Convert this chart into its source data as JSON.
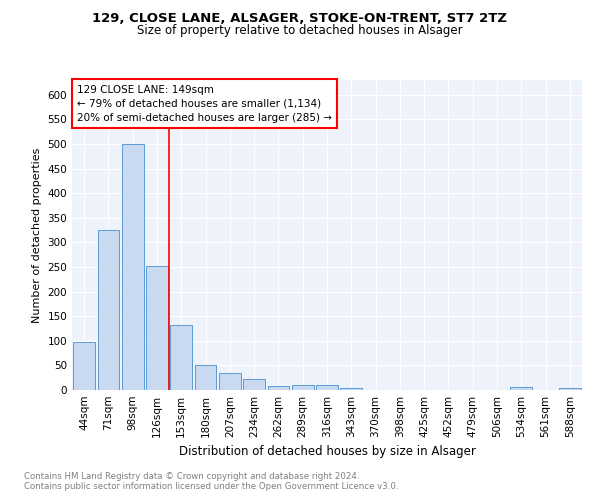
{
  "title1": "129, CLOSE LANE, ALSAGER, STOKE-ON-TRENT, ST7 2TZ",
  "title2": "Size of property relative to detached houses in Alsager",
  "xlabel": "Distribution of detached houses by size in Alsager",
  "ylabel": "Number of detached properties",
  "categories": [
    "44sqm",
    "71sqm",
    "98sqm",
    "126sqm",
    "153sqm",
    "180sqm",
    "207sqm",
    "234sqm",
    "262sqm",
    "289sqm",
    "316sqm",
    "343sqm",
    "370sqm",
    "398sqm",
    "425sqm",
    "452sqm",
    "479sqm",
    "506sqm",
    "534sqm",
    "561sqm",
    "588sqm"
  ],
  "values": [
    97,
    325,
    500,
    252,
    133,
    51,
    35,
    22,
    8,
    10,
    10,
    5,
    0,
    0,
    0,
    0,
    0,
    0,
    7,
    0,
    5
  ],
  "bar_color": "#c9d9f0",
  "bar_edge_color": "#5b9bd5",
  "red_line_x": 3.5,
  "annotation_text_line1": "129 CLOSE LANE: 149sqm",
  "annotation_text_line2": "← 79% of detached houses are smaller (1,134)",
  "annotation_text_line3": "20% of semi-detached houses are larger (285) →",
  "footnote1": "Contains HM Land Registry data © Crown copyright and database right 2024.",
  "footnote2": "Contains public sector information licensed under the Open Government Licence v3.0.",
  "ylim": [
    0,
    630
  ],
  "yticks": [
    0,
    50,
    100,
    150,
    200,
    250,
    300,
    350,
    400,
    450,
    500,
    550,
    600
  ],
  "bg_color": "#eef3fb",
  "grid_color": "#ffffff",
  "title1_fontsize": 9.5,
  "title2_fontsize": 8.5,
  "xlabel_fontsize": 8.5,
  "ylabel_fontsize": 8.0,
  "tick_fontsize": 7.5,
  "annot_fontsize": 7.5,
  "footnote_fontsize": 6.2
}
